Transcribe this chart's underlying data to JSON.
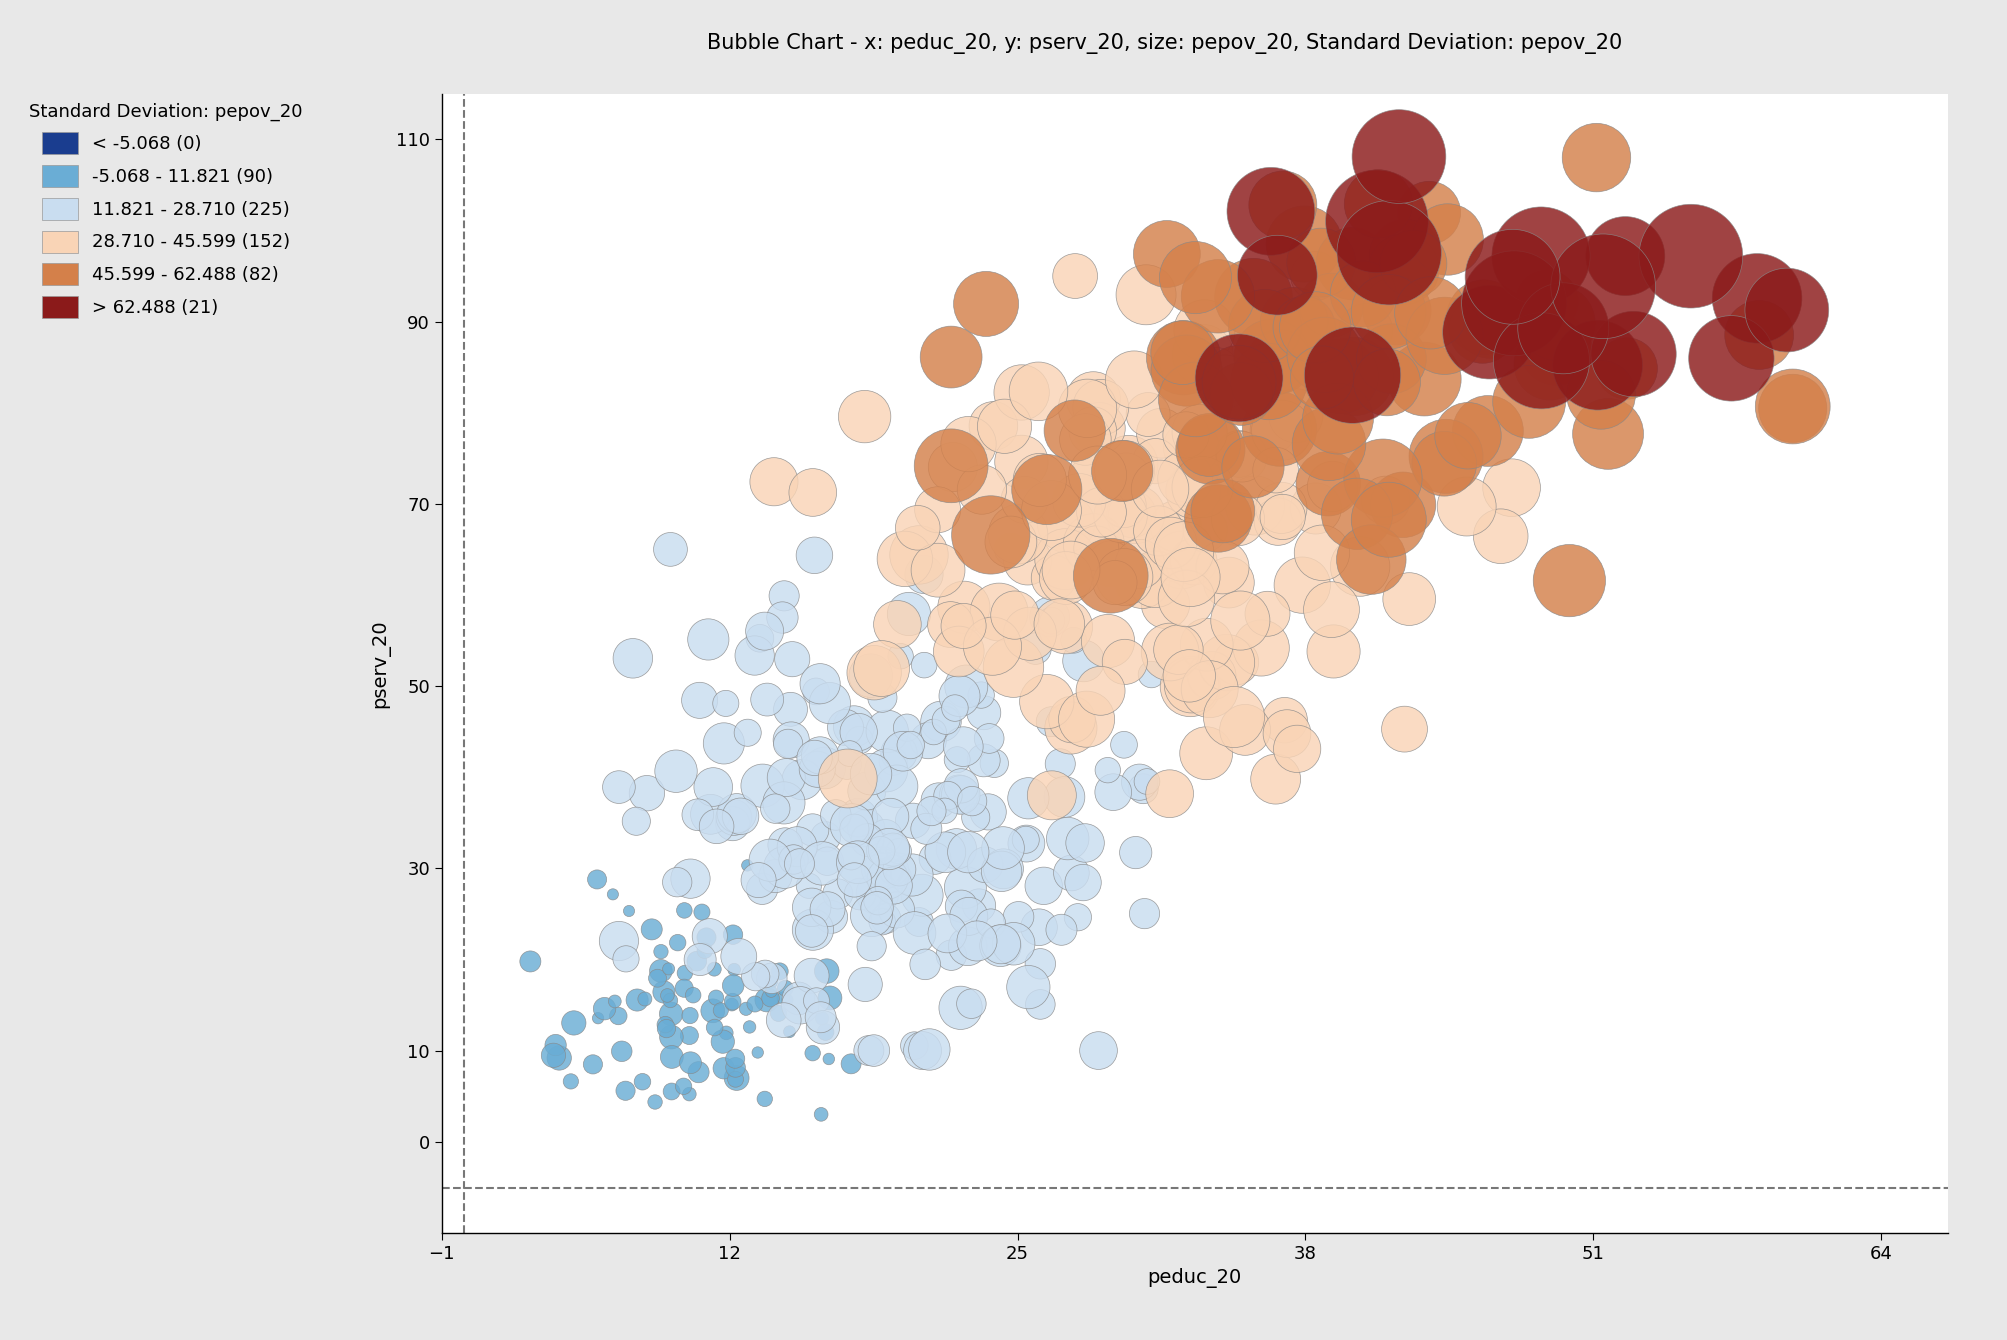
{
  "title": "Bubble Chart - x: peduc_20, y: pserv_20, size: pepov_20, Standard Deviation: pepov_20",
  "xlabel": "peduc_20",
  "ylabel": "pserv_20",
  "xlim": [
    -1,
    67
  ],
  "ylim": [
    -10,
    115
  ],
  "xticks": [
    -1,
    12,
    25,
    38,
    51,
    64
  ],
  "yticks": [
    0,
    10,
    30,
    50,
    70,
    90,
    110
  ],
  "hline_y": -5.068,
  "vline_x": 0,
  "fig_facecolor": "#e8e8e8",
  "plot_facecolor": "#ffffff",
  "legend_title": "Standard Deviation: pepov_20",
  "legend_entries": [
    {
      "label": "< -5.068 (0)",
      "color": "#1a3d8f"
    },
    {
      "label": "-5.068 - 11.821 (90)",
      "color": "#6aadd5"
    },
    {
      "label": "11.821 - 28.710 (225)",
      "color": "#c9ddf0"
    },
    {
      "label": "28.710 - 45.599 (152)",
      "color": "#f9d4b6"
    },
    {
      "label": "45.599 - 62.488 (82)",
      "color": "#d4804a"
    },
    {
      "label": "> 62.488 (21)",
      "color": "#8b1a1a"
    }
  ],
  "color_bins": [
    -999,
    -5.068,
    11.821,
    28.71,
    45.599,
    62.488,
    9999
  ],
  "colors": [
    "#1a3d8f",
    "#6aadd5",
    "#c9ddf0",
    "#f9d4b6",
    "#d4804a",
    "#8b1a1a"
  ],
  "seed": 42,
  "title_fontsize": 15,
  "label_fontsize": 14,
  "tick_fontsize": 13,
  "legend_fontsize": 13,
  "bubble_alpha": 0.82
}
